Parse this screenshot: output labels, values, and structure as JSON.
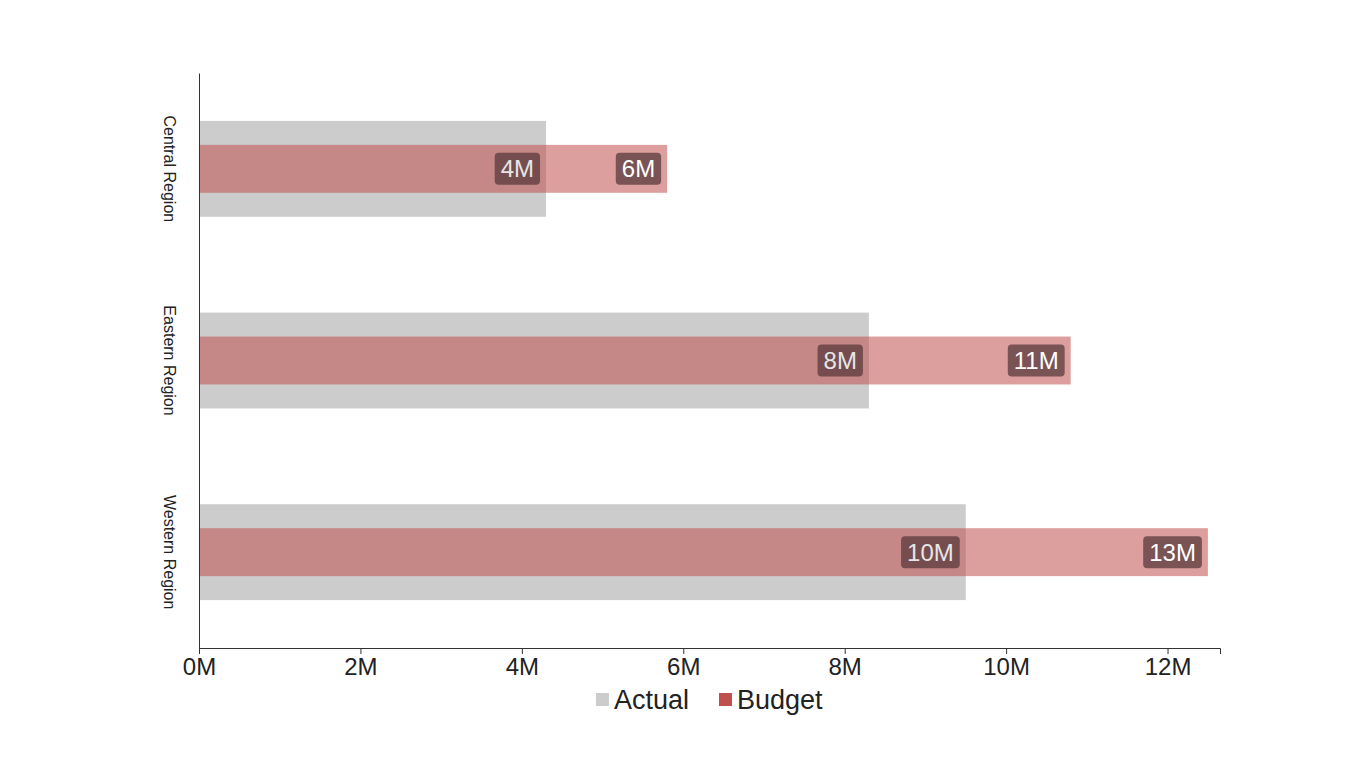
{
  "chart_data": {
    "type": "bar",
    "orientation": "horizontal",
    "categories": [
      "Central Region",
      "Eastern Region",
      "Western Region"
    ],
    "series": [
      {
        "name": "Actual",
        "color": "#cccccc",
        "values": [
          4.3,
          8.3,
          9.5
        ],
        "value_labels": [
          "4M",
          "8M",
          "10M"
        ]
      },
      {
        "name": "Budget",
        "color": "#c0504d",
        "values": [
          5.8,
          10.8,
          12.5
        ],
        "value_labels": [
          "6M",
          "11M",
          "13M"
        ]
      }
    ],
    "xlim": [
      0,
      12.65
    ],
    "xticks": [
      {
        "value": 0,
        "label": "0M"
      },
      {
        "value": 2,
        "label": "2M"
      },
      {
        "value": 4,
        "label": "4M"
      },
      {
        "value": 6,
        "label": "6M"
      },
      {
        "value": 8,
        "label": "8M"
      },
      {
        "value": 10,
        "label": "10M"
      },
      {
        "value": 12,
        "label": "12M"
      }
    ],
    "data_labels": true,
    "legend": "bottom"
  }
}
